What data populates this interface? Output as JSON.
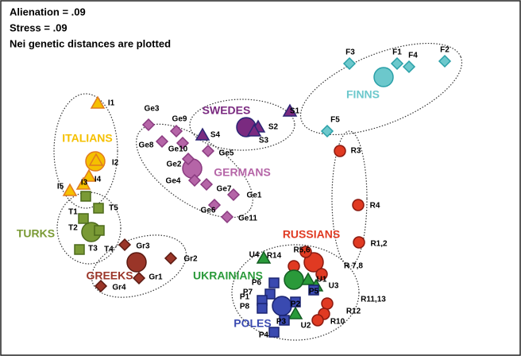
{
  "notes": [
    "Alienation = .09",
    "Stress = .09",
    "Nei genetic distances are plotted"
  ],
  "groups": [
    {
      "name": "FINNS",
      "points": [
        "F3",
        "F1",
        "F4",
        "F2",
        "F5"
      ]
    },
    {
      "name": "SWEDES",
      "points": [
        "S1",
        "S2",
        "S3",
        "S4"
      ]
    },
    {
      "name": "GERMANS",
      "points": [
        "Ge3",
        "Ge9",
        "Ge8",
        "Ge10",
        "Ge5",
        "Ge2",
        "Ge4",
        "Ge7",
        "Ge1",
        "Ge6",
        "Ge11"
      ]
    },
    {
      "name": "ITALIANS",
      "points": [
        "I1",
        "I2",
        "I4",
        "I3",
        "I5"
      ]
    },
    {
      "name": "TURKS",
      "points": [
        "T1",
        "T5",
        "T2",
        "T4",
        "T3"
      ]
    },
    {
      "name": "GREEKS",
      "points": [
        "Gr3",
        "Gr2",
        "Gr1",
        "Gr4"
      ]
    },
    {
      "name": "RUSSIANS",
      "points": [
        "R3",
        "R4",
        "R1,2",
        "R14",
        "R5,6",
        "R 7,8",
        "R11,13",
        "R12",
        "R10"
      ]
    },
    {
      "name": "UKRAINIANS",
      "points": [
        "U4",
        "U1",
        "U3",
        "U2"
      ]
    },
    {
      "name": "POLES",
      "points": [
        "P6",
        "P7",
        "P1",
        "P8",
        "P2",
        "P5",
        "P3",
        "P4"
      ]
    }
  ]
}
